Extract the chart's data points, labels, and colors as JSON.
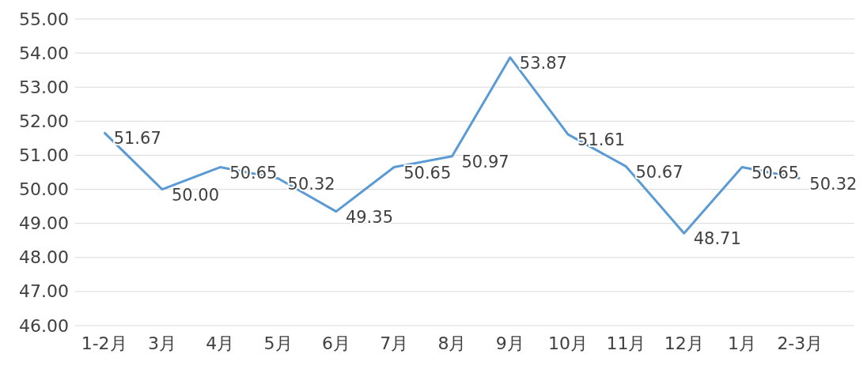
{
  "chart_data": {
    "type": "line",
    "categories": [
      "1-2月",
      "3月",
      "4月",
      "5月",
      "6月",
      "7月",
      "8月",
      "9月",
      "10月",
      "11月",
      "12月",
      "1月",
      "2-3月"
    ],
    "series": [
      {
        "color": "#5b9bd5",
        "values": [
          51.67,
          50.0,
          50.65,
          50.32,
          49.35,
          50.65,
          50.97,
          53.87,
          51.61,
          50.67,
          48.71,
          50.65,
          50.32
        ],
        "value_labels": [
          "51.67",
          "50.00",
          "50.65",
          "50.32",
          "49.35",
          "50.65",
          "50.97",
          "53.87",
          "51.61",
          "50.67",
          "48.71",
          "50.65",
          "50.32"
        ]
      }
    ],
    "ylim": [
      46,
      55
    ],
    "yticks": [
      {
        "value": 46,
        "label": "46.00"
      },
      {
        "value": 47,
        "label": "47.00"
      },
      {
        "value": 48,
        "label": "48.00"
      },
      {
        "value": 49,
        "label": "49.00"
      },
      {
        "value": 50,
        "label": "50.00"
      },
      {
        "value": 51,
        "label": "51.00"
      },
      {
        "value": 52,
        "label": "52.00"
      },
      {
        "value": 53,
        "label": "53.00"
      },
      {
        "value": 54,
        "label": "54.00"
      },
      {
        "value": 55,
        "label": "55.00"
      }
    ],
    "grid": "y",
    "marker": "none",
    "line_style": "solid"
  }
}
